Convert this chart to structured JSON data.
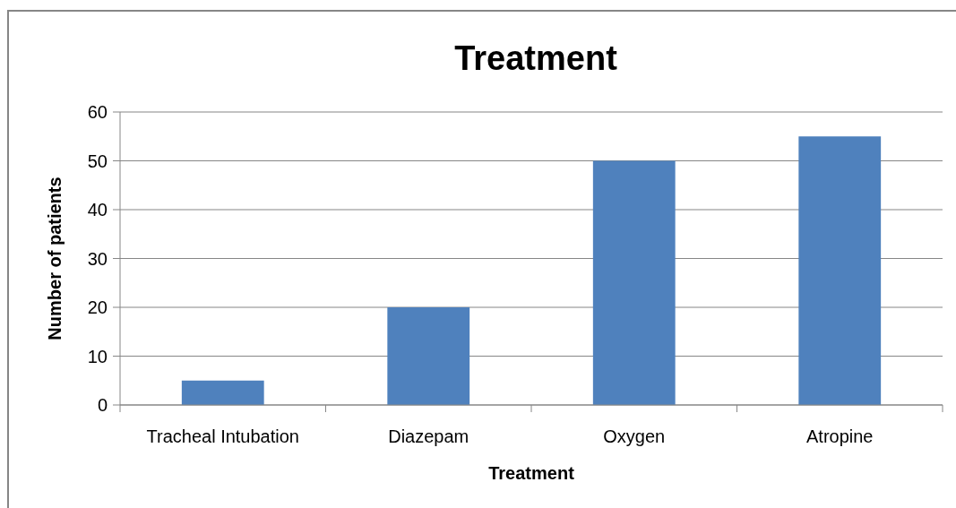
{
  "chart_data": {
    "type": "bar",
    "title": "Treatment",
    "xlabel": "Treatment",
    "ylabel": "Number of patients",
    "categories": [
      "Tracheal Intubation",
      "Diazepam",
      "Oxygen",
      "Atropine"
    ],
    "values": [
      5,
      20,
      50,
      55
    ],
    "color": "#4f81bd",
    "ylim": [
      0,
      60
    ],
    "yticks": [
      0,
      10,
      20,
      30,
      40,
      50,
      60
    ],
    "grid": "y"
  }
}
